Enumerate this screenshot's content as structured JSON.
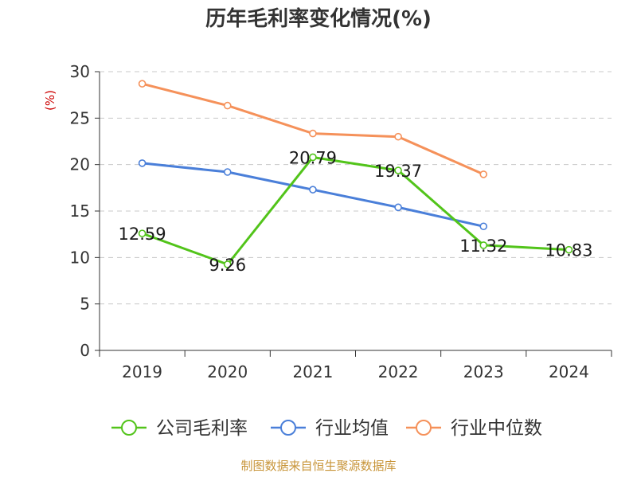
{
  "chart_data": {
    "type": "line",
    "title": "历年毛利率变化情况(%)",
    "ylabel": "(%)",
    "xlabel": "",
    "categories": [
      "2019",
      "2020",
      "2021",
      "2022",
      "2023",
      "2024"
    ],
    "ylim": [
      0,
      30
    ],
    "yticks": [
      "0",
      "5",
      "10",
      "15",
      "20",
      "25",
      "30"
    ],
    "grid": true,
    "legend_position": "bottom",
    "series": [
      {
        "name": "公司毛利率",
        "color": "#52c41a",
        "values": [
          12.59,
          9.26,
          20.79,
          19.37,
          11.32,
          10.83
        ],
        "labels": [
          "12.59",
          "9.26",
          "20.79",
          "19.37",
          "11.32",
          "10.83"
        ]
      },
      {
        "name": "行业均值",
        "color": "#4a7fd9",
        "values": [
          20.15,
          19.2,
          17.3,
          15.4,
          13.35,
          null
        ]
      },
      {
        "name": "行业中位数",
        "color": "#f5915a",
        "values": [
          28.7,
          26.35,
          23.35,
          23.0,
          18.95,
          null
        ]
      }
    ]
  },
  "source_note": "制图数据来自恒生聚源数据库",
  "colors": {
    "ylabel": "#cc0000",
    "source_note": "#c8953a",
    "axis": "#333333",
    "grid": "#c8c8c8"
  }
}
